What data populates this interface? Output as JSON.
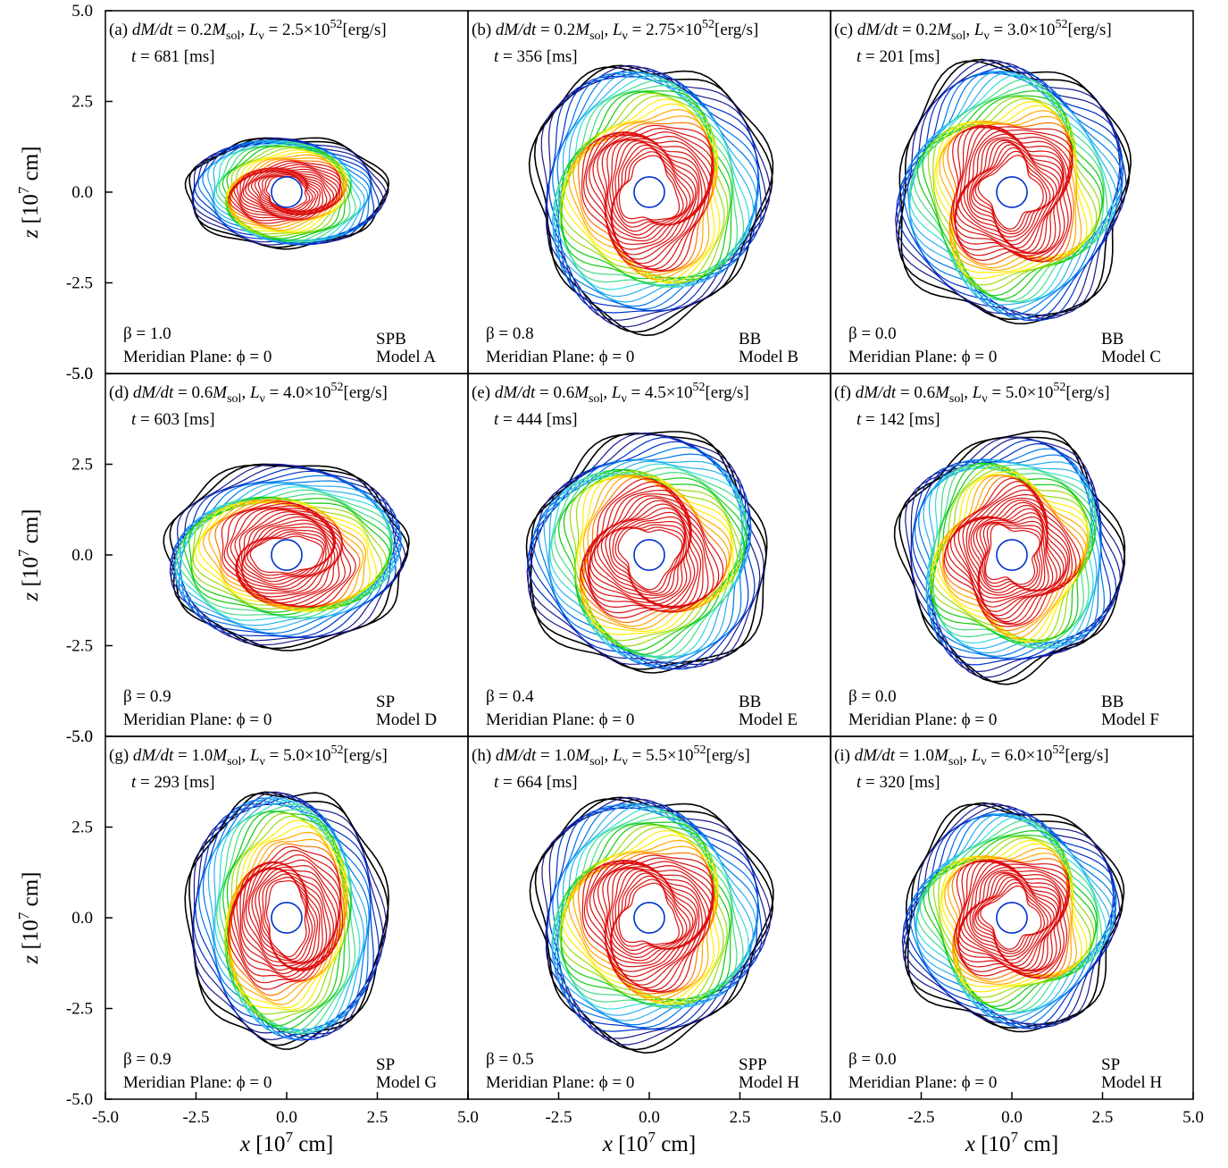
{
  "chart_data": [
    {
      "type": "heatmap",
      "panel": "a",
      "label": "(a)",
      "mdot": "0.2",
      "lnu_coef": "2.5",
      "time": "681",
      "beta": "1.0",
      "plane": "Meridian Plane: ϕ = 0",
      "mode": "SPB",
      "model": "Model A",
      "xlim": [
        -5.0,
        5.0
      ],
      "ylim": [
        -5.0,
        5.0
      ],
      "shock_radius": [
        2.6,
        1.6
      ]
    },
    {
      "type": "heatmap",
      "panel": "b",
      "label": "(b)",
      "mdot": "0.2",
      "lnu_coef": "2.75",
      "time": "356",
      "beta": "0.8",
      "plane": "Meridian Plane: ϕ = 0",
      "mode": "BB",
      "model": "Model B",
      "xlim": [
        -5.0,
        5.0
      ],
      "ylim": [
        -5.0,
        5.0
      ],
      "shock_radius": [
        3.2,
        3.6
      ]
    },
    {
      "type": "heatmap",
      "panel": "c",
      "label": "(c)",
      "mdot": "0.2",
      "lnu_coef": "3.0",
      "time": "201",
      "beta": "0.0",
      "plane": "Meridian Plane: ϕ = 0",
      "mode": "BB",
      "model": "Model C",
      "xlim": [
        -5.0,
        5.0
      ],
      "ylim": [
        -5.0,
        5.0
      ],
      "shock_radius": [
        3.2,
        3.6
      ]
    },
    {
      "type": "heatmap",
      "panel": "d",
      "label": "(d)",
      "mdot": "0.6",
      "lnu_coef": "4.0",
      "time": "603",
      "beta": "0.9",
      "plane": "Meridian Plane: ϕ = 0",
      "mode": "SP",
      "model": "Model D",
      "xlim": [
        -5.0,
        5.0
      ],
      "ylim": [
        -5.0,
        5.0
      ],
      "shock_radius": [
        3.5,
        2.4
      ]
    },
    {
      "type": "heatmap",
      "panel": "e",
      "label": "(e)",
      "mdot": "0.6",
      "lnu_coef": "4.5",
      "time": "444",
      "beta": "0.4",
      "plane": "Meridian Plane: ϕ = 0",
      "mode": "BB",
      "model": "Model E",
      "xlim": [
        -5.0,
        5.0
      ],
      "ylim": [
        -5.0,
        5.0
      ],
      "shock_radius": [
        3.3,
        3.3
      ]
    },
    {
      "type": "heatmap",
      "panel": "f",
      "label": "(f)",
      "mdot": "0.6",
      "lnu_coef": "5.0",
      "time": "142",
      "beta": "0.0",
      "plane": "Meridian Plane: ϕ = 0",
      "mode": "BB",
      "model": "Model F",
      "xlim": [
        -5.0,
        5.0
      ],
      "ylim": [
        -5.0,
        5.0
      ],
      "shock_radius": [
        3.0,
        3.3
      ]
    },
    {
      "type": "heatmap",
      "panel": "g",
      "label": "(g)",
      "mdot": "1.0",
      "lnu_coef": "5.0",
      "time": "293",
      "beta": "0.9",
      "plane": "Meridian Plane: ϕ = 0",
      "mode": "SP",
      "model": "Model G",
      "xlim": [
        -5.0,
        5.0
      ],
      "ylim": [
        -5.0,
        5.0
      ],
      "shock_radius": [
        2.6,
        3.7
      ]
    },
    {
      "type": "heatmap",
      "panel": "h",
      "label": "(h)",
      "mdot": "1.0",
      "lnu_coef": "5.5",
      "time": "664",
      "beta": "0.5",
      "plane": "Meridian Plane: ϕ = 0",
      "mode": "SPP",
      "model": "Model H",
      "xlim": [
        -5.0,
        5.0
      ],
      "ylim": [
        -5.0,
        5.0
      ],
      "shock_radius": [
        3.2,
        3.4
      ]
    },
    {
      "type": "heatmap",
      "panel": "i",
      "label": "(i)",
      "mdot": "1.0",
      "lnu_coef": "6.0",
      "time": "320",
      "beta": "0.0",
      "plane": "Meridian Plane: ϕ = 0",
      "mode": "SP",
      "model": "Model H",
      "xlim": [
        -5.0,
        5.0
      ],
      "ylim": [
        -5.0,
        5.0
      ],
      "shock_radius": [
        3.0,
        3.1
      ]
    }
  ],
  "axes": {
    "y_ticks": [
      "5.0",
      "2.5",
      "0.0",
      "-2.5",
      "-5.0"
    ],
    "x_ticks": [
      "-5.0",
      "-2.5",
      "0.0",
      "2.5",
      "5.0"
    ],
    "ylabel_var": "z",
    "xlabel_var": "x",
    "unit_pre": " [10",
    "unit_exp": "7",
    "unit_post": " cm]"
  },
  "colors": [
    "#000000",
    "#1a1a8c",
    "#0033cc",
    "#0077ee",
    "#2ab0ee",
    "#33dddd",
    "#44dd88",
    "#11cc11",
    "#99dd11",
    "#ffee00",
    "#ffaa00",
    "#ff7700",
    "#dd1111"
  ],
  "text": {
    "dmdt": "dM/dt",
    "eq": " = ",
    "msol": "M",
    "sol_sub": "sol",
    "comma": ", ",
    "lnu": "L",
    "nu_sub": "ν",
    "times10": "×10",
    "exp52": "52",
    "unit": "[erg/s]",
    "t": "t",
    "ms": " [ms]",
    "beta_prefix": "β = "
  }
}
